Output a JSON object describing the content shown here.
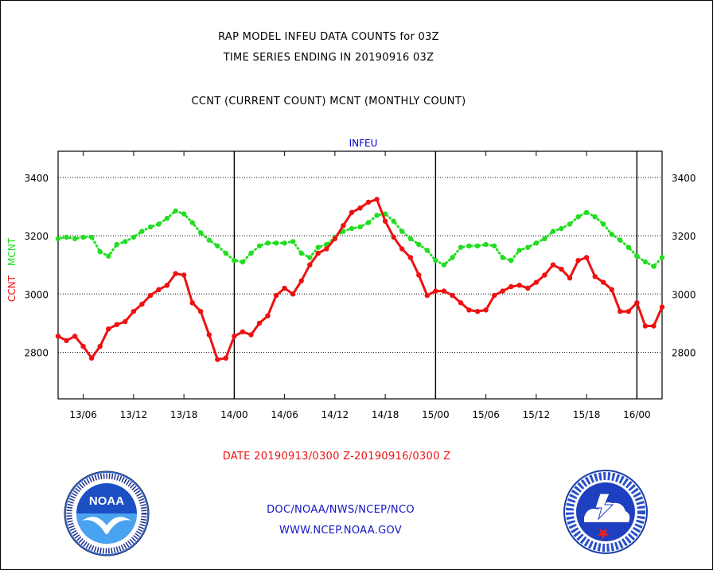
{
  "header": {
    "title_line1": "RAP MODEL INFEU DATA COUNTS for 03Z",
    "title_line2": "TIME SERIES ENDING IN 20190916 03Z",
    "subtitle": "CCNT (CURRENT COUNT) MCNT (MONTHLY COUNT)"
  },
  "footer": {
    "date_range": "DATE 20190913/0300 Z-20190916/0300 Z",
    "agency_path": "DOC/NOAA/NWS/NCEP/NCO",
    "website": "WWW.NCEP.NOAA.GOV"
  },
  "logos": {
    "noaa_label": "NOAA"
  },
  "colors": {
    "ccnt": "#ee1111",
    "mcnt": "#22dd22",
    "panel_label": "#0000cc",
    "date_text": "#ee1111",
    "footer_text": "#1515c8"
  },
  "chart_data": {
    "type": "line",
    "panel_label": "INFEU",
    "ylabel_ccnt": "CCNT",
    "ylabel_mcnt": "MCNT",
    "x_start": "20190913/0300",
    "x_end": "20190916/0300",
    "x_unit": "hours from 13/03Z",
    "x_tick_labels": [
      "13/06",
      "13/12",
      "13/18",
      "14/00",
      "14/06",
      "14/12",
      "14/18",
      "15/00",
      "15/06",
      "15/12",
      "15/18",
      "16/00"
    ],
    "x_tick_hours": [
      3,
      9,
      15,
      21,
      27,
      33,
      39,
      45,
      51,
      57,
      63,
      69
    ],
    "day_boundaries": [
      "14/00",
      "15/00",
      "16/00"
    ],
    "ylim": [
      2640,
      3490
    ],
    "y_ticks": [
      2800,
      3000,
      3200,
      3400
    ],
    "y_grid": true,
    "x": [
      0,
      1,
      2,
      3,
      4,
      5,
      6,
      7,
      8,
      9,
      10,
      11,
      12,
      13,
      14,
      15,
      16,
      17,
      18,
      19,
      20,
      21,
      22,
      23,
      24,
      25,
      26,
      27,
      28,
      29,
      30,
      31,
      32,
      33,
      34,
      35,
      36,
      37,
      38,
      39,
      40,
      41,
      42,
      43,
      44,
      45,
      46,
      47,
      48,
      49,
      50,
      51,
      52,
      53,
      54,
      55,
      56,
      57,
      58,
      59,
      60,
      61,
      62,
      63,
      64,
      65,
      66,
      67,
      68,
      69,
      70,
      71,
      72
    ],
    "series": [
      {
        "name": "CCNT",
        "values": [
          2855,
          2840,
          2855,
          2820,
          2780,
          2820,
          2880,
          2895,
          2905,
          2940,
          2965,
          2995,
          3015,
          3030,
          3070,
          3065,
          2970,
          2940,
          2860,
          2775,
          2780,
          2855,
          2870,
          2860,
          2900,
          2925,
          2995,
          3020,
          3000,
          3045,
          3100,
          3140,
          3155,
          3190,
          3235,
          3280,
          3295,
          3315,
          3325,
          3250,
          3195,
          3155,
          3125,
          3065,
          2995,
          3010,
          3010,
          2995,
          2970,
          2945,
          2940,
          2945,
          2995,
          3010,
          3025,
          3030,
          3020,
          3040,
          3065,
          3100,
          3085,
          3055,
          3115,
          3125,
          3060,
          3040,
          3015,
          2940,
          2940,
          2970,
          2890,
          2890,
          2955
        ]
      },
      {
        "name": "MCNT",
        "values": [
          3190,
          3195,
          3190,
          3195,
          3195,
          3145,
          3130,
          3170,
          3180,
          3195,
          3215,
          3230,
          3240,
          3260,
          3285,
          3275,
          3245,
          3210,
          3185,
          3165,
          3140,
          3115,
          3110,
          3140,
          3165,
          3175,
          3175,
          3175,
          3180,
          3140,
          3125,
          3160,
          3170,
          3195,
          3215,
          3225,
          3230,
          3245,
          3270,
          3275,
          3250,
          3215,
          3190,
          3170,
          3150,
          3115,
          3100,
          3125,
          3160,
          3165,
          3165,
          3170,
          3165,
          3125,
          3115,
          3150,
          3160,
          3175,
          3190,
          3215,
          3225,
          3240,
          3265,
          3280,
          3265,
          3240,
          3205,
          3185,
          3160,
          3130,
          3110,
          3095,
          3125
        ]
      }
    ]
  }
}
